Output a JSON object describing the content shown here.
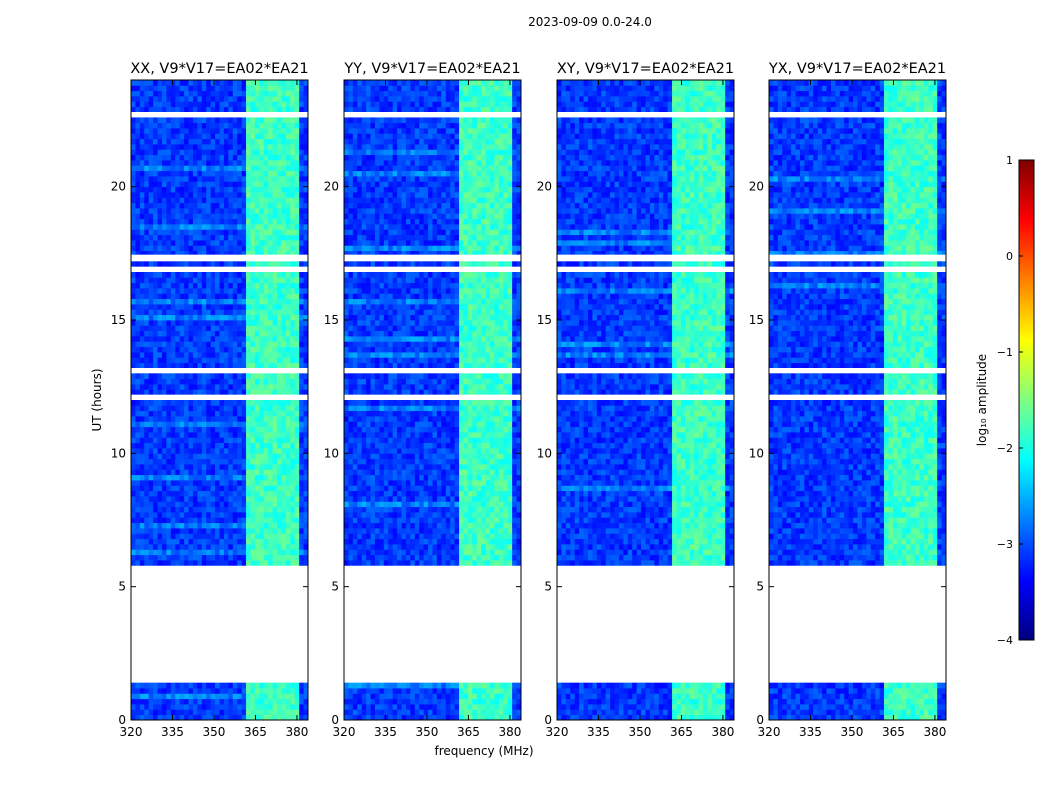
{
  "chart_data": {
    "type": "heatmap",
    "suptitle": "2023-09-09 0.0-24.0",
    "xlabel": "frequency (MHz)",
    "ylabel": "UT (hours)",
    "xlim": [
      320,
      384
    ],
    "ylim": [
      0,
      24
    ],
    "xticks": [
      "320",
      "335",
      "350",
      "365",
      "380"
    ],
    "yticks": [
      "0",
      "5",
      "10",
      "15",
      "20"
    ],
    "panels": [
      {
        "title": "XX, V9*V17=EA02*EA21"
      },
      {
        "title": "YY, V9*V17=EA02*EA21"
      },
      {
        "title": "XY, V9*V17=EA02*EA21"
      },
      {
        "title": "YX, V9*V17=EA02*EA21"
      }
    ],
    "colorbar": {
      "label": "log₁₀ amplitude",
      "range": [
        -4,
        1
      ],
      "ticks": [
        "1",
        "0",
        "−1",
        "−2",
        "−3",
        "−4"
      ],
      "colormap": [
        "#00007f",
        "#0000ff",
        "#007fff",
        "#00ffff",
        "#7fff7f",
        "#ffff00",
        "#ff7f00",
        "#ff0000",
        "#7f0000"
      ]
    },
    "gaps_hours": [
      [
        1.45,
        5.7
      ],
      [
        12.05,
        12.2
      ],
      [
        13.05,
        13.2
      ],
      [
        16.8,
        17.0
      ],
      [
        17.25,
        17.45
      ],
      [
        22.6,
        22.8
      ]
    ],
    "rfi_band_mhz": [
      362,
      381
    ],
    "baseline_level": -3.1,
    "rfi_level": -1.9
  }
}
